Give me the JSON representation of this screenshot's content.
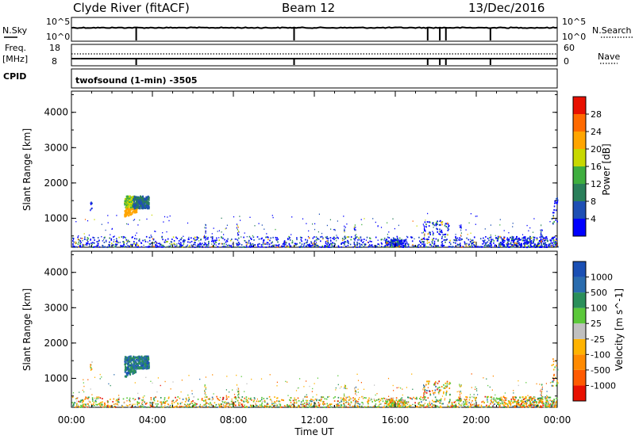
{
  "header": {
    "station": "Clyde River (fitACF)",
    "beam": "Beam 12",
    "date": "13/Dec/2016"
  },
  "summary_panels": {
    "nsky_label": "N.Sky",
    "nsky_ticks": [
      "10^5",
      "10^0"
    ],
    "nsearch_label": "N.Search",
    "nsearch_ticks": [
      "10^5",
      "10^0"
    ],
    "freq_label": "Freq.",
    "freq_unit": "[MHz]",
    "freq_ticks": [
      "18",
      "8"
    ],
    "nave_label": "Nave",
    "nave_ticks": [
      "60",
      "0"
    ],
    "cpid_label": "CPID",
    "cpid_text": "twofsound (1-min) -3505"
  },
  "colors": {
    "power_scale": [
      "#0000ff",
      "#1e4fb4",
      "#2a7f5a",
      "#3fae3f",
      "#c8d800",
      "#ffa500",
      "#ff6a00",
      "#e81000"
    ],
    "velocity_scale": [
      "#1a4fb4",
      "#2a6cae",
      "#2a8f5a",
      "#5bc83a",
      "#c0c0c0",
      "#ffb300",
      "#ff8a00",
      "#ff5a00",
      "#e81000"
    ]
  },
  "chart_data": [
    {
      "type": "heatmap",
      "name": "power",
      "title": "",
      "xlabel": "",
      "ylabel": "Slant Range [km]",
      "xlim": [
        "00:00",
        "24:00"
      ],
      "ylim": [
        180,
        4600
      ],
      "x_tick_labels": [
        "00:00",
        "04:00",
        "08:00",
        "12:00",
        "16:00",
        "20:00",
        "00:00"
      ],
      "y_tick_labels": [
        "1000",
        "2000",
        "3000",
        "4000"
      ],
      "y_ticks": [
        1000,
        2000,
        3000,
        4000
      ],
      "colorbar": {
        "label": "Power [dB]",
        "tick_labels": [
          "4",
          "8",
          "12",
          "16",
          "20",
          "24",
          "28"
        ]
      },
      "patches": [
        {
          "t": [
            2.6,
            3.8
          ],
          "r": [
            1050,
            1650
          ],
          "note_color": "mixed"
        },
        {
          "t": [
            0.0,
            24.0
          ],
          "r": [
            180,
            450
          ]
        },
        {
          "t": [
            15.5,
            16.5
          ],
          "r": [
            200,
            400
          ]
        },
        {
          "t": [
            17.5,
            18.5
          ],
          "r": [
            600,
            900
          ]
        },
        {
          "t": [
            21.5,
            23.5
          ],
          "r": [
            200,
            450
          ]
        }
      ]
    },
    {
      "type": "heatmap",
      "name": "velocity",
      "title": "",
      "xlabel": "Time UT",
      "ylabel": "Slant Range [km]",
      "xlim": [
        "00:00",
        "24:00"
      ],
      "ylim": [
        180,
        4600
      ],
      "x_tick_labels": [
        "00:00",
        "04:00",
        "08:00",
        "12:00",
        "16:00",
        "20:00",
        "00:00"
      ],
      "y_tick_labels": [
        "1000",
        "2000",
        "3000",
        "4000"
      ],
      "y_ticks": [
        1000,
        2000,
        3000,
        4000
      ],
      "colorbar": {
        "label": "Velocity [m s^-1]",
        "tick_labels": [
          "1000",
          "500",
          "100",
          "25",
          "-25",
          "-100",
          "-500",
          "-1000"
        ]
      }
    }
  ]
}
